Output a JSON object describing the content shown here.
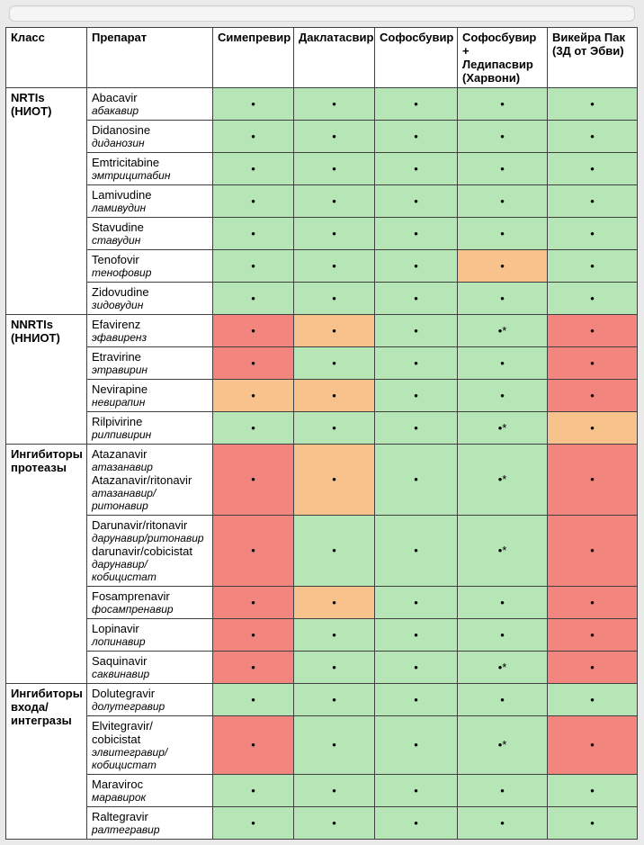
{
  "colors": {
    "green": "#b6e6b6",
    "orange": "#f7c28b",
    "red": "#f2867e",
    "white": "#ffffff"
  },
  "marks": {
    "dot": "•",
    "dotstar": "•*"
  },
  "headers": {
    "class": "Класс",
    "drug": "Препарат",
    "c1": "Симепревир",
    "c2": "Даклатасвир",
    "c3": "Софосбувир",
    "c4_l1": "Софосбувир",
    "c4_l2": "+",
    "c4_l3": "Ледипасвир",
    "c4_l4": "(Харвони)",
    "c5_l1": "Викейра Пак",
    "c5_l2": "(3Д от Эбви)"
  },
  "groups": [
    {
      "class_lines": [
        "NRTIs",
        "(НИОТ)"
      ],
      "rows": [
        {
          "en": "Abacavir",
          "ru": "абакавир",
          "cells": [
            [
              "dot",
              "green"
            ],
            [
              "dot",
              "green"
            ],
            [
              "dot",
              "green"
            ],
            [
              "dot",
              "green"
            ],
            [
              "dot",
              "green"
            ]
          ]
        },
        {
          "en": "Didanosine",
          "ru": "диданозин",
          "cells": [
            [
              "dot",
              "green"
            ],
            [
              "dot",
              "green"
            ],
            [
              "dot",
              "green"
            ],
            [
              "dot",
              "green"
            ],
            [
              "dot",
              "green"
            ]
          ]
        },
        {
          "en": "Emtricitabine",
          "ru": "эмтрицитабин",
          "cells": [
            [
              "dot",
              "green"
            ],
            [
              "dot",
              "green"
            ],
            [
              "dot",
              "green"
            ],
            [
              "dot",
              "green"
            ],
            [
              "dot",
              "green"
            ]
          ]
        },
        {
          "en": "Lamivudine",
          "ru": "ламивудин",
          "cells": [
            [
              "dot",
              "green"
            ],
            [
              "dot",
              "green"
            ],
            [
              "dot",
              "green"
            ],
            [
              "dot",
              "green"
            ],
            [
              "dot",
              "green"
            ]
          ]
        },
        {
          "en": "Stavudine",
          "ru": "ставудин",
          "cells": [
            [
              "dot",
              "green"
            ],
            [
              "dot",
              "green"
            ],
            [
              "dot",
              "green"
            ],
            [
              "dot",
              "green"
            ],
            [
              "dot",
              "green"
            ]
          ]
        },
        {
          "en": "Tenofovir",
          "ru": "тенофовир",
          "cells": [
            [
              "dot",
              "green"
            ],
            [
              "dot",
              "green"
            ],
            [
              "dot",
              "green"
            ],
            [
              "dot",
              "orange"
            ],
            [
              "dot",
              "green"
            ]
          ]
        },
        {
          "en": "Zidovudine",
          "ru": "зидовудин",
          "cells": [
            [
              "dot",
              "green"
            ],
            [
              "dot",
              "green"
            ],
            [
              "dot",
              "green"
            ],
            [
              "dot",
              "green"
            ],
            [
              "dot",
              "green"
            ]
          ]
        }
      ]
    },
    {
      "class_lines": [
        "NNRTIs",
        "(ННИОТ)"
      ],
      "rows": [
        {
          "en": "Efavirenz",
          "ru": "эфавиренз",
          "cells": [
            [
              "dot",
              "red"
            ],
            [
              "dot",
              "orange"
            ],
            [
              "dot",
              "green"
            ],
            [
              "dotstar",
              "green"
            ],
            [
              "dot",
              "red"
            ]
          ]
        },
        {
          "en": "Etravirine",
          "ru": "этравирин",
          "cells": [
            [
              "dot",
              "red"
            ],
            [
              "dot",
              "green"
            ],
            [
              "dot",
              "green"
            ],
            [
              "dot",
              "green"
            ],
            [
              "dot",
              "red"
            ]
          ]
        },
        {
          "en": "Nevirapine",
          "ru": "невирапин",
          "cells": [
            [
              "dot",
              "orange"
            ],
            [
              "dot",
              "orange"
            ],
            [
              "dot",
              "green"
            ],
            [
              "dot",
              "green"
            ],
            [
              "dot",
              "red"
            ]
          ]
        },
        {
          "en": "Rilpivirine",
          "ru": "рилпивирин",
          "cells": [
            [
              "dot",
              "green"
            ],
            [
              "dot",
              "green"
            ],
            [
              "dot",
              "green"
            ],
            [
              "dotstar",
              "green"
            ],
            [
              "dot",
              "orange"
            ]
          ]
        }
      ]
    },
    {
      "class_lines": [
        "Ингибиторы",
        "протеазы"
      ],
      "rows": [
        {
          "multi": [
            [
              "Atazanavir",
              "атазанавир"
            ],
            [
              "Atazanavir/ritonavir",
              "атазанавир/ритонавир"
            ]
          ],
          "cells": [
            [
              "dot",
              "red"
            ],
            [
              "dot",
              "orange"
            ],
            [
              "dot",
              "green"
            ],
            [
              "dotstar",
              "green"
            ],
            [
              "dot",
              "red"
            ]
          ]
        },
        {
          "multi": [
            [
              "Darunavir/ritonavir",
              "дарунавир/ритонавир"
            ],
            [
              "darunavir/cobicistat",
              "дарунавир/кобицистат"
            ]
          ],
          "cells": [
            [
              "dot",
              "red"
            ],
            [
              "dot",
              "green"
            ],
            [
              "dot",
              "green"
            ],
            [
              "dotstar",
              "green"
            ],
            [
              "dot",
              "red"
            ]
          ]
        },
        {
          "en": "Fosamprenavir",
          "ru": "фосампренавир",
          "cells": [
            [
              "dot",
              "red"
            ],
            [
              "dot",
              "orange"
            ],
            [
              "dot",
              "green"
            ],
            [
              "dot",
              "green"
            ],
            [
              "dot",
              "red"
            ]
          ]
        },
        {
          "en": "Lopinavir",
          "ru": "лопинавир",
          "cells": [
            [
              "dot",
              "red"
            ],
            [
              "dot",
              "green"
            ],
            [
              "dot",
              "green"
            ],
            [
              "dot",
              "green"
            ],
            [
              "dot",
              "red"
            ]
          ]
        },
        {
          "en": "Saquinavir",
          "ru": "саквинавир",
          "cells": [
            [
              "dot",
              "red"
            ],
            [
              "dot",
              "green"
            ],
            [
              "dot",
              "green"
            ],
            [
              "dotstar",
              "green"
            ],
            [
              "dot",
              "red"
            ]
          ]
        }
      ]
    },
    {
      "class_lines": [
        "Ингибиторы",
        "входа/",
        "интегразы"
      ],
      "rows": [
        {
          "en": "Dolutegravir",
          "ru": "долутегравир",
          "cells": [
            [
              "dot",
              "green"
            ],
            [
              "dot",
              "green"
            ],
            [
              "dot",
              "green"
            ],
            [
              "dot",
              "green"
            ],
            [
              "dot",
              "green"
            ]
          ]
        },
        {
          "multi": [
            [
              "Elvitegravir/",
              ""
            ],
            [
              "cobicistat",
              "элвитегравир/ кобицистат"
            ]
          ],
          "cells": [
            [
              "dot",
              "red"
            ],
            [
              "dot",
              "green"
            ],
            [
              "dot",
              "green"
            ],
            [
              "dotstar",
              "green"
            ],
            [
              "dot",
              "red"
            ]
          ]
        },
        {
          "en": "Maraviroc",
          "ru": "маравирок",
          "cells": [
            [
              "dot",
              "green"
            ],
            [
              "dot",
              "green"
            ],
            [
              "dot",
              "green"
            ],
            [
              "dot",
              "green"
            ],
            [
              "dot",
              "green"
            ]
          ]
        },
        {
          "en": "Raltegravir",
          "ru": "ралтегравир",
          "cells": [
            [
              "dot",
              "green"
            ],
            [
              "dot",
              "green"
            ],
            [
              "dot",
              "green"
            ],
            [
              "dot",
              "green"
            ],
            [
              "dot",
              "green"
            ]
          ]
        }
      ]
    }
  ]
}
